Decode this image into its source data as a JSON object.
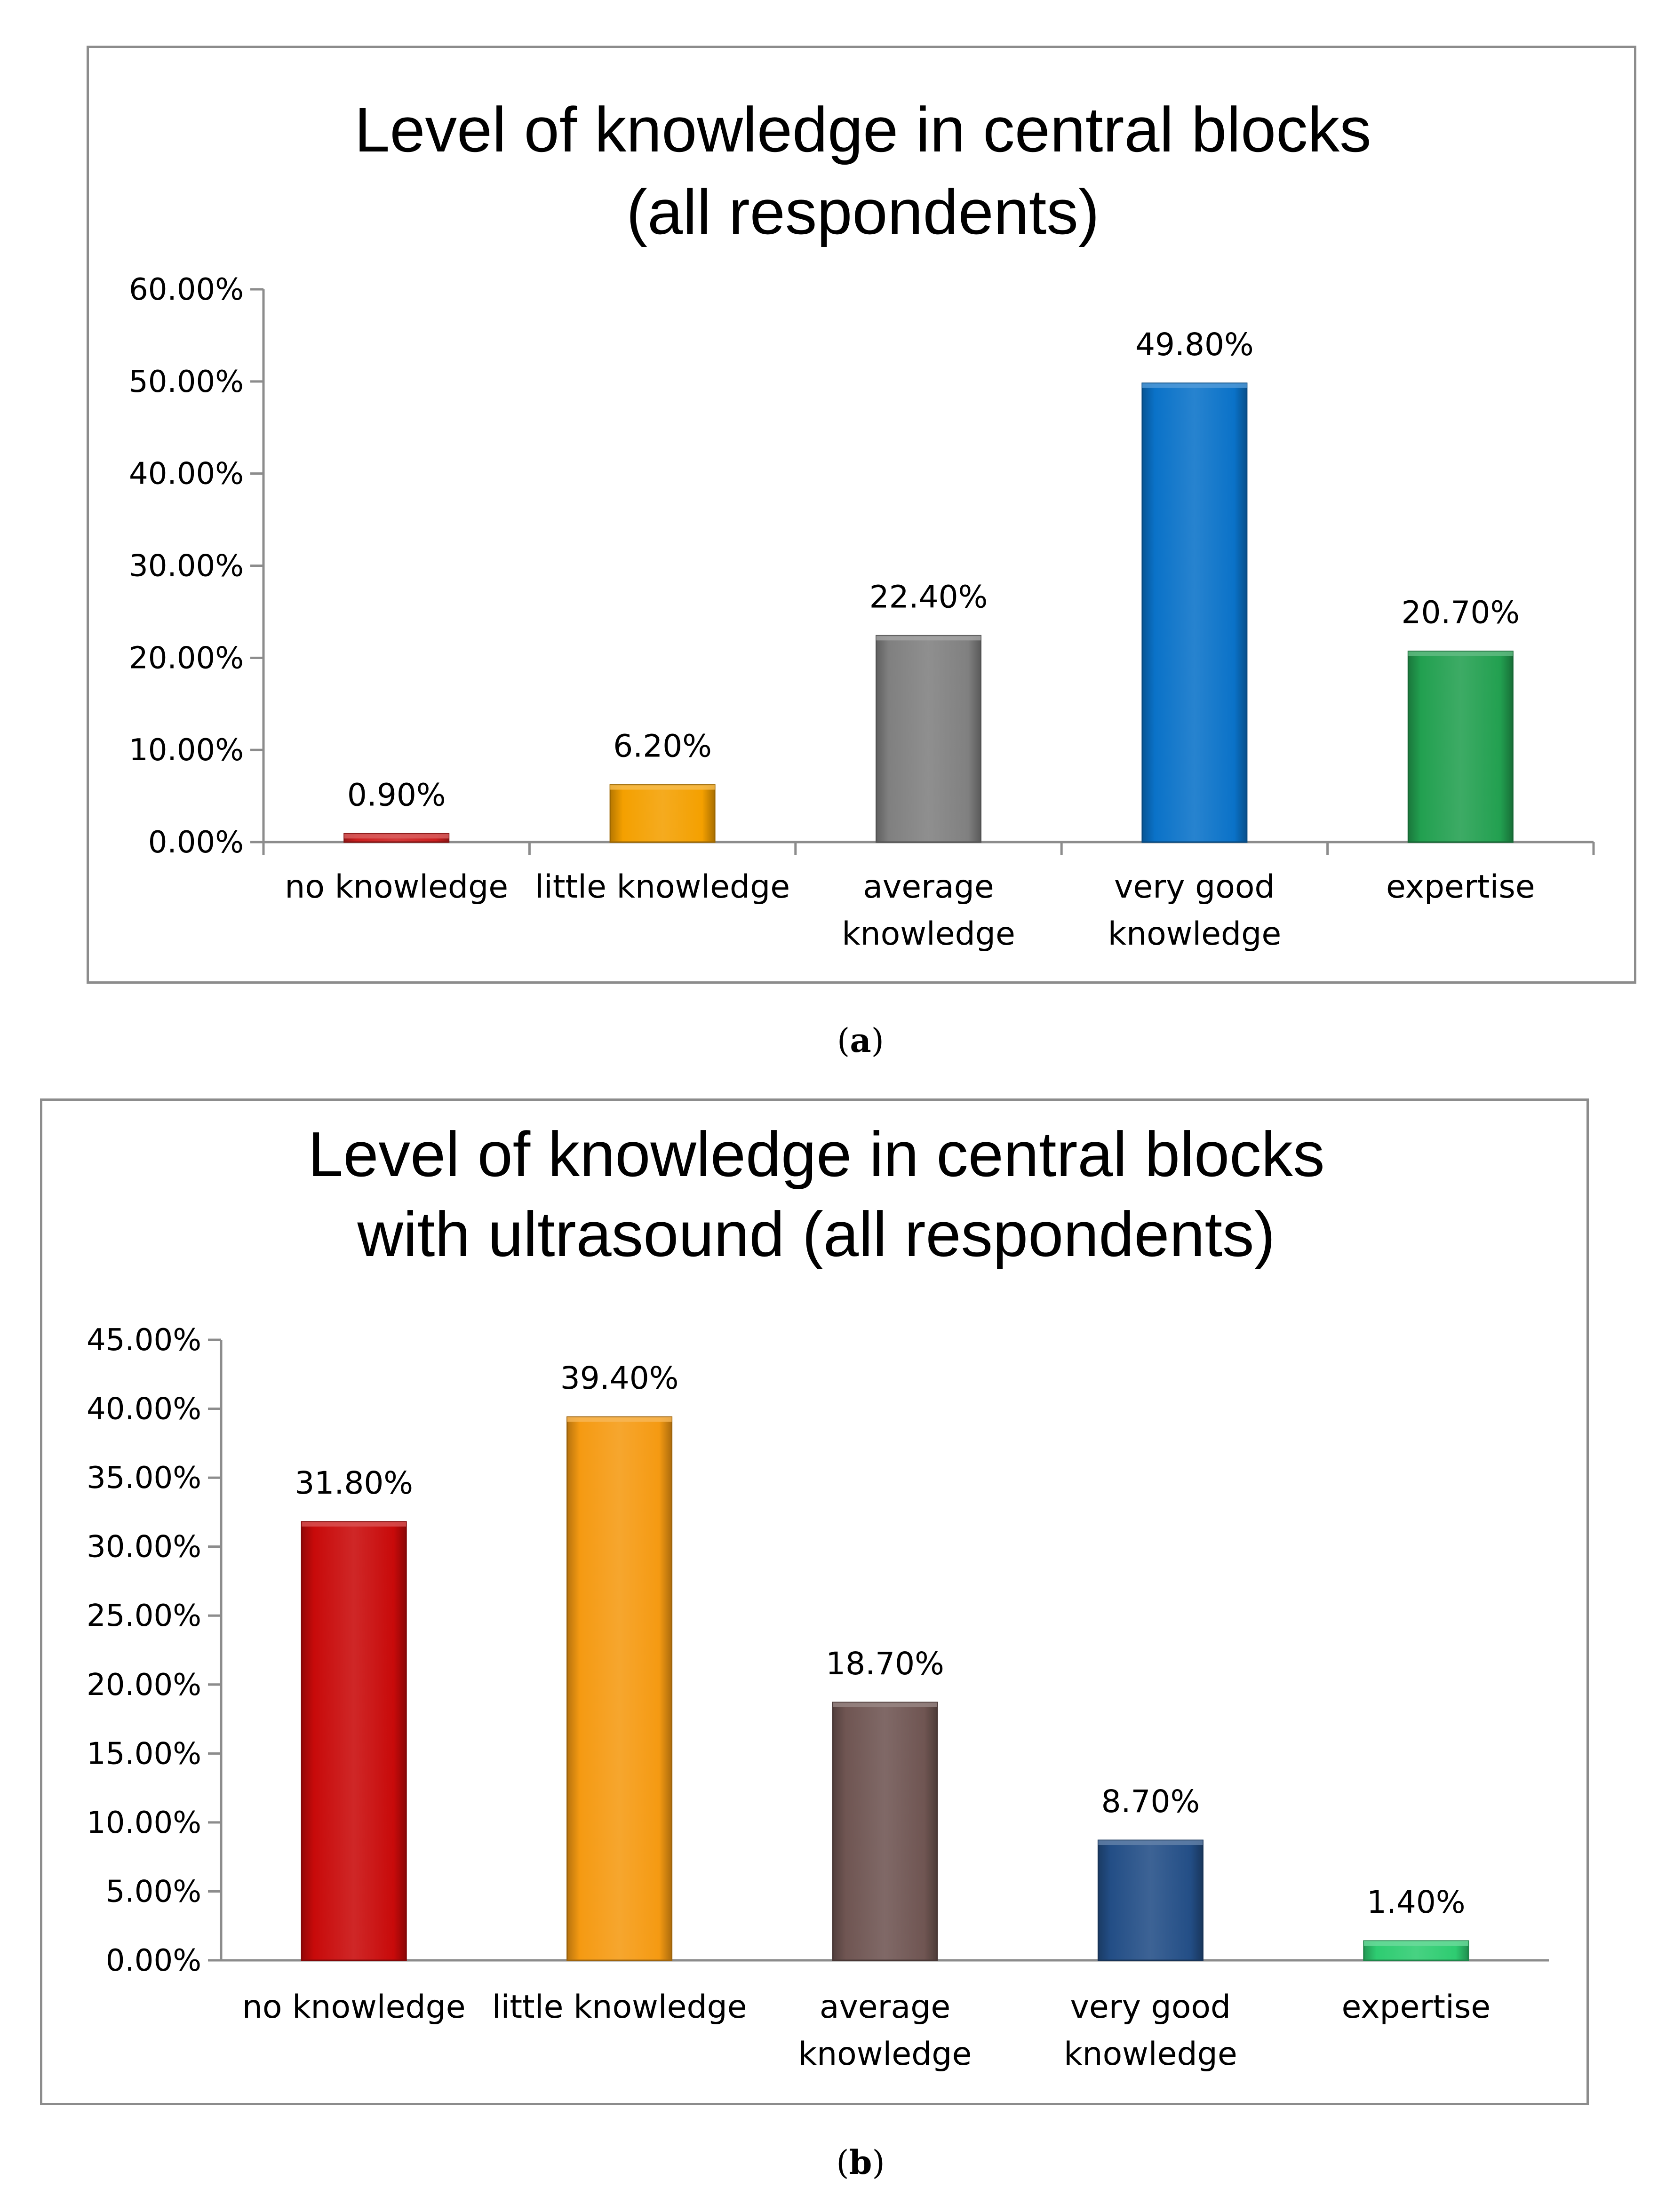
{
  "chart_data": [
    {
      "type": "bar",
      "title_lines": [
        "Level of knowledge in central blocks",
        "(all respondents)"
      ],
      "categories": [
        [
          "no knowledge"
        ],
        [
          "little knowledge"
        ],
        [
          "average",
          "knowledge"
        ],
        [
          "very good",
          "knowledge"
        ],
        [
          "expertise"
        ]
      ],
      "values": [
        0.9,
        6.2,
        22.4,
        49.8,
        20.7
      ],
      "value_labels": [
        "0.90%",
        "6.20%",
        "22.40%",
        "49.80%",
        "20.70%"
      ],
      "colors": [
        "#cc1f1f",
        "#f4a000",
        "#808080",
        "#0a72c8",
        "#22a050"
      ],
      "ylim": [
        0,
        60
      ],
      "yticks": [
        0,
        10,
        20,
        30,
        40,
        50,
        60
      ],
      "ytick_labels": [
        "0.00%",
        "10.00%",
        "20.00%",
        "30.00%",
        "40.00%",
        "50.00%",
        "60.00%"
      ],
      "xlabel": "",
      "ylabel": "",
      "grid": false,
      "legend": "none",
      "caption_letter": "a"
    },
    {
      "type": "bar",
      "title_lines": [
        "Level of knowledge in central blocks",
        "with ultrasound (all respondents)"
      ],
      "categories": [
        [
          "no knowledge"
        ],
        [
          "little knowledge"
        ],
        [
          "average",
          "knowledge"
        ],
        [
          "very good",
          "knowledge"
        ],
        [
          "expertise"
        ]
      ],
      "values": [
        31.8,
        39.4,
        18.7,
        8.7,
        1.4
      ],
      "value_labels": [
        "31.80%",
        "39.40%",
        "18.70%",
        "8.70%",
        "1.40%"
      ],
      "colors": [
        "#c80a0a",
        "#f59a12",
        "#6f5552",
        "#234e86",
        "#2ecc71"
      ],
      "ylim": [
        0,
        45
      ],
      "yticks": [
        0,
        5,
        10,
        15,
        20,
        25,
        30,
        35,
        40,
        45
      ],
      "ytick_labels": [
        "0.00%",
        "5.00%",
        "10.00%",
        "15.00%",
        "20.00%",
        "25.00%",
        "30.00%",
        "35.00%",
        "40.00%",
        "45.00%"
      ],
      "xlabel": "",
      "ylabel": "",
      "grid": false,
      "legend": "none",
      "caption_letter": "b"
    }
  ]
}
